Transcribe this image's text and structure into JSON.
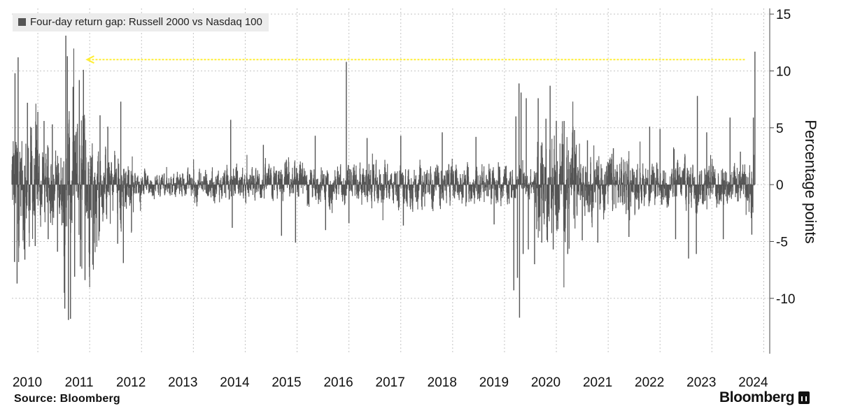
{
  "legend": {
    "label": "Four-day return gap: Russell 2000 vs Nasdaq 100",
    "color": "#545454"
  },
  "source": "Source: Bloomberg",
  "brand": "Bloomberg",
  "chart_data": {
    "type": "bar",
    "ylabel": "Percentage points",
    "ylim": [
      -14.5,
      15.5
    ],
    "yticks": [
      15,
      10,
      5,
      0,
      -5,
      -10
    ],
    "ytick_labels": [
      "15",
      "10",
      "5",
      "0",
      "-5",
      "-10"
    ],
    "xlim": [
      2010.0,
      2024.35
    ],
    "xticks": [
      2010,
      2011,
      2012,
      2013,
      2014,
      2015,
      2016,
      2017,
      2018,
      2019,
      2020,
      2021,
      2022,
      2023,
      2024
    ],
    "xtick_labels": [
      "2010",
      "2011",
      "2012",
      "2013",
      "2014",
      "2015",
      "2016",
      "2017",
      "2018",
      "2019",
      "2020",
      "2021",
      "2022",
      "2023",
      "2024"
    ],
    "grid": true,
    "legend_position": "top-left",
    "bar_color": "#545454",
    "reference_line": {
      "y": 11.0,
      "x_start": 2011.45,
      "x_end": 2024.15,
      "color": "#ffee33"
    },
    "regimes": [
      {
        "from": 2010.0,
        "to": 2010.5,
        "amp": 4.6
      },
      {
        "from": 2010.5,
        "to": 2011.0,
        "amp": 2.8
      },
      {
        "from": 2011.0,
        "to": 2011.7,
        "amp": 5.2
      },
      {
        "from": 2011.7,
        "to": 2012.35,
        "amp": 2.6
      },
      {
        "from": 2012.35,
        "to": 2013.5,
        "amp": 0.9
      },
      {
        "from": 2013.5,
        "to": 2015.0,
        "amp": 1.2
      },
      {
        "from": 2015.0,
        "to": 2016.5,
        "amp": 1.3
      },
      {
        "from": 2016.5,
        "to": 2018.0,
        "amp": 1.5
      },
      {
        "from": 2018.0,
        "to": 2019.65,
        "amp": 1.4
      },
      {
        "from": 2019.65,
        "to": 2020.1,
        "amp": 1.1
      },
      {
        "from": 2020.1,
        "to": 2020.9,
        "amp": 3.6
      },
      {
        "from": 2020.9,
        "to": 2021.9,
        "amp": 2.2
      },
      {
        "from": 2021.9,
        "to": 2024.2,
        "amp": 1.6
      },
      {
        "from": 2024.2,
        "to": 2024.32,
        "amp": 2.3
      }
    ],
    "spikes": [
      {
        "x": 2010.06,
        "y": 9.8
      },
      {
        "x": 2010.12,
        "y": 11.2
      },
      {
        "x": 2010.1,
        "y": -8.7
      },
      {
        "x": 2010.05,
        "y": -6.8
      },
      {
        "x": 2010.3,
        "y": 7.2
      },
      {
        "x": 2010.25,
        "y": -6.6
      },
      {
        "x": 2010.45,
        "y": -5.4
      },
      {
        "x": 2010.5,
        "y": 6.4
      },
      {
        "x": 2010.62,
        "y": 5.6
      },
      {
        "x": 2010.7,
        "y": -4.8
      },
      {
        "x": 2010.78,
        "y": 5.3
      },
      {
        "x": 2010.88,
        "y": -5.9
      },
      {
        "x": 2011.04,
        "y": 13.1
      },
      {
        "x": 2011.07,
        "y": 11.3
      },
      {
        "x": 2011.02,
        "y": -10.9
      },
      {
        "x": 2011.09,
        "y": -11.9
      },
      {
        "x": 2011.13,
        "y": -11.8
      },
      {
        "x": 2011.18,
        "y": 8.6
      },
      {
        "x": 2011.21,
        "y": -8.1
      },
      {
        "x": 2011.3,
        "y": 9.2
      },
      {
        "x": 2011.32,
        "y": -7.2
      },
      {
        "x": 2011.38,
        "y": 10.1
      },
      {
        "x": 2011.41,
        "y": -8.4
      },
      {
        "x": 2011.5,
        "y": -6.1
      },
      {
        "x": 2011.7,
        "y": 6.1
      },
      {
        "x": 2011.85,
        "y": 5.1
      },
      {
        "x": 2012.1,
        "y": 7.3
      },
      {
        "x": 2012.04,
        "y": -5.2
      },
      {
        "x": 2012.15,
        "y": -6.9
      },
      {
        "x": 2014.22,
        "y": 5.7
      },
      {
        "x": 2014.25,
        "y": -3.8
      },
      {
        "x": 2014.85,
        "y": 3.5
      },
      {
        "x": 2015.2,
        "y": -4.5
      },
      {
        "x": 2015.47,
        "y": -5.1
      },
      {
        "x": 2015.85,
        "y": 4.3
      },
      {
        "x": 2016.05,
        "y": -4.0
      },
      {
        "x": 2016.45,
        "y": 10.8
      },
      {
        "x": 2016.5,
        "y": -3.4
      },
      {
        "x": 2016.85,
        "y": 4.1
      },
      {
        "x": 2017.5,
        "y": 4.3
      },
      {
        "x": 2017.55,
        "y": -3.6
      },
      {
        "x": 2018.3,
        "y": 4.6
      },
      {
        "x": 2018.95,
        "y": 4.2
      },
      {
        "x": 2019.3,
        "y": -3.5
      },
      {
        "x": 2019.68,
        "y": -9.3
      },
      {
        "x": 2019.72,
        "y": 6.0
      },
      {
        "x": 2019.75,
        "y": -8.2
      },
      {
        "x": 2019.78,
        "y": 8.9
      },
      {
        "x": 2019.79,
        "y": -11.7
      },
      {
        "x": 2019.82,
        "y": 8.1
      },
      {
        "x": 2019.86,
        "y": -6.1
      },
      {
        "x": 2019.92,
        "y": 7.6
      },
      {
        "x": 2019.96,
        "y": -5.7
      },
      {
        "x": 2020.08,
        "y": -7.0
      },
      {
        "x": 2020.15,
        "y": 7.6
      },
      {
        "x": 2020.22,
        "y": -5.1
      },
      {
        "x": 2020.3,
        "y": 5.8
      },
      {
        "x": 2020.38,
        "y": 8.7
      },
      {
        "x": 2020.44,
        "y": -5.7
      },
      {
        "x": 2020.5,
        "y": 5.6
      },
      {
        "x": 2020.65,
        "y": 5.6
      },
      {
        "x": 2020.72,
        "y": -6.1
      },
      {
        "x": 2020.85,
        "y": 4.8
      },
      {
        "x": 2021.0,
        "y": -4.9
      },
      {
        "x": 2021.1,
        "y": 3.9
      },
      {
        "x": 2021.3,
        "y": -5.1
      },
      {
        "x": 2021.6,
        "y": 3.2
      },
      {
        "x": 2021.9,
        "y": -4.6
      },
      {
        "x": 2022.3,
        "y": 5.1
      },
      {
        "x": 2022.5,
        "y": 4.9
      },
      {
        "x": 2022.8,
        "y": -4.8
      },
      {
        "x": 2023.05,
        "y": -6.5
      },
      {
        "x": 2023.2,
        "y": -6.1
      },
      {
        "x": 2023.22,
        "y": 7.8
      },
      {
        "x": 2023.4,
        "y": 4.6
      },
      {
        "x": 2023.72,
        "y": -4.8
      },
      {
        "x": 2023.85,
        "y": 5.9
      },
      {
        "x": 2024.05,
        "y": 2.9
      },
      {
        "x": 2024.27,
        "y": -4.4
      },
      {
        "x": 2024.3,
        "y": 5.9
      },
      {
        "x": 2024.33,
        "y": 11.7
      }
    ]
  }
}
